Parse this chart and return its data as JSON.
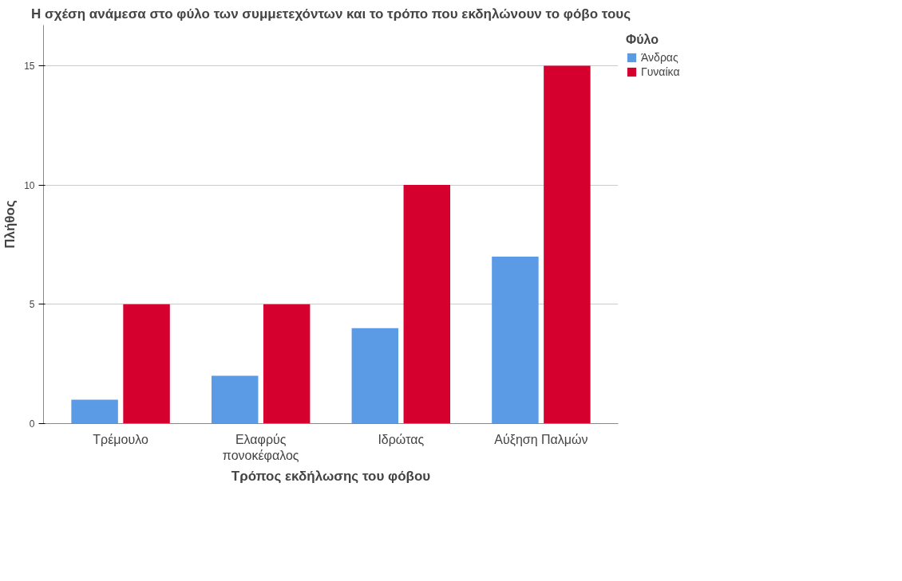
{
  "chart_data": {
    "type": "bar",
    "title": "Η σχέση ανάμεσα στο φύλο των συμμετεχόντων και το τρόπο που εκδηλώνουν το φόβο τους",
    "xlabel": "Τρόπος εκδήλωσης του φόβου",
    "ylabel": "Πλήθος",
    "legend_title": "Φύλο",
    "categories": [
      "Τρέμουλο",
      "Ελαφρύς\nπονοκέφαλος",
      "Ιδρώτας",
      "Αύξηση Παλμών"
    ],
    "series": [
      {
        "name": "Άνδρας",
        "color": "#5b9be6",
        "values": [
          1,
          2,
          4,
          7
        ]
      },
      {
        "name": "Γυναίκα",
        "color": "#d6002e",
        "values": [
          5,
          5,
          10,
          15
        ]
      }
    ],
    "ylim": [
      0,
      16.7
    ],
    "yticks": [
      0,
      5,
      10,
      15
    ],
    "grid": "y",
    "legend": "top right"
  }
}
